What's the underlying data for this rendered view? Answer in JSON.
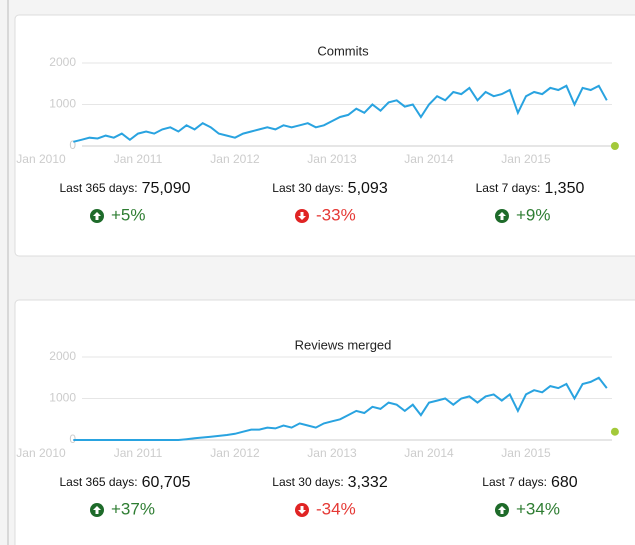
{
  "chart_data": [
    {
      "type": "line",
      "title": "Commits",
      "color": "#29a3e0",
      "ylim": [
        0,
        2000
      ],
      "yticks": [
        0,
        1000,
        2000
      ],
      "xticks": [
        {
          "value": "2010-01",
          "label": "Jan 2010"
        },
        {
          "value": "2011-01",
          "label": "Jan 2011"
        },
        {
          "value": "2012-01",
          "label": "Jan 2012"
        },
        {
          "value": "2013-01",
          "label": "Jan 2013"
        },
        {
          "value": "2014-01",
          "label": "Jan 2014"
        },
        {
          "value": "2015-01",
          "label": "Jan 2015"
        }
      ],
      "x": [
        "2010-05",
        "2010-06",
        "2010-07",
        "2010-08",
        "2010-09",
        "2010-10",
        "2010-11",
        "2010-12",
        "2011-01",
        "2011-02",
        "2011-03",
        "2011-04",
        "2011-05",
        "2011-06",
        "2011-07",
        "2011-08",
        "2011-09",
        "2011-10",
        "2011-11",
        "2011-12",
        "2012-01",
        "2012-02",
        "2012-03",
        "2012-04",
        "2012-05",
        "2012-06",
        "2012-07",
        "2012-08",
        "2012-09",
        "2012-10",
        "2012-11",
        "2012-12",
        "2013-01",
        "2013-02",
        "2013-03",
        "2013-04",
        "2013-05",
        "2013-06",
        "2013-07",
        "2013-08",
        "2013-09",
        "2013-10",
        "2013-11",
        "2013-12",
        "2014-01",
        "2014-02",
        "2014-03",
        "2014-04",
        "2014-05",
        "2014-06",
        "2014-07",
        "2014-08",
        "2014-09",
        "2014-10",
        "2014-11",
        "2014-12",
        "2015-01",
        "2015-02",
        "2015-03",
        "2015-04",
        "2015-05",
        "2015-06",
        "2015-07",
        "2015-08",
        "2015-09",
        "2015-10",
        "2015-11"
      ],
      "values": [
        100,
        150,
        200,
        180,
        250,
        200,
        300,
        150,
        300,
        350,
        300,
        400,
        450,
        350,
        500,
        400,
        550,
        450,
        300,
        250,
        200,
        300,
        350,
        400,
        450,
        400,
        500,
        450,
        500,
        550,
        450,
        500,
        600,
        700,
        750,
        900,
        800,
        1000,
        850,
        1050,
        1100,
        950,
        1000,
        700,
        1000,
        1200,
        1100,
        1300,
        1250,
        1400,
        1100,
        1300,
        1200,
        1250,
        1350,
        800,
        1200,
        1300,
        1250,
        1400,
        1350,
        1450,
        1000,
        1400,
        1350,
        1450,
        1100
      ],
      "marker": {
        "x": "2015-12",
        "value": 0,
        "color": "#a3c93a"
      }
    },
    {
      "type": "line",
      "title": "Reviews merged",
      "color": "#29a3e0",
      "ylim": [
        0,
        2000
      ],
      "yticks": [
        0,
        1000,
        2000
      ],
      "xticks": [
        {
          "value": "2010-01",
          "label": "Jan 2010"
        },
        {
          "value": "2011-01",
          "label": "Jan 2011"
        },
        {
          "value": "2012-01",
          "label": "Jan 2012"
        },
        {
          "value": "2013-01",
          "label": "Jan 2013"
        },
        {
          "value": "2014-01",
          "label": "Jan 2014"
        },
        {
          "value": "2015-01",
          "label": "Jan 2015"
        }
      ],
      "x": [
        "2010-05",
        "2010-06",
        "2010-07",
        "2010-08",
        "2010-09",
        "2010-10",
        "2010-11",
        "2010-12",
        "2011-01",
        "2011-02",
        "2011-03",
        "2011-04",
        "2011-05",
        "2011-06",
        "2011-07",
        "2011-08",
        "2011-09",
        "2011-10",
        "2011-11",
        "2011-12",
        "2012-01",
        "2012-02",
        "2012-03",
        "2012-04",
        "2012-05",
        "2012-06",
        "2012-07",
        "2012-08",
        "2012-09",
        "2012-10",
        "2012-11",
        "2012-12",
        "2013-01",
        "2013-02",
        "2013-03",
        "2013-04",
        "2013-05",
        "2013-06",
        "2013-07",
        "2013-08",
        "2013-09",
        "2013-10",
        "2013-11",
        "2013-12",
        "2014-01",
        "2014-02",
        "2014-03",
        "2014-04",
        "2014-05",
        "2014-06",
        "2014-07",
        "2014-08",
        "2014-09",
        "2014-10",
        "2014-11",
        "2014-12",
        "2015-01",
        "2015-02",
        "2015-03",
        "2015-04",
        "2015-05",
        "2015-06",
        "2015-07",
        "2015-08",
        "2015-09",
        "2015-10",
        "2015-11"
      ],
      "values": [
        0,
        0,
        0,
        0,
        0,
        0,
        0,
        0,
        0,
        0,
        0,
        0,
        0,
        0,
        20,
        40,
        60,
        80,
        100,
        120,
        150,
        200,
        250,
        250,
        300,
        280,
        350,
        300,
        400,
        350,
        300,
        400,
        450,
        500,
        600,
        700,
        650,
        800,
        750,
        900,
        850,
        700,
        850,
        600,
        900,
        950,
        1000,
        850,
        1000,
        1050,
        900,
        1050,
        1100,
        950,
        1100,
        700,
        1100,
        1200,
        1150,
        1300,
        1250,
        1350,
        1000,
        1350,
        1400,
        1500,
        1250
      ],
      "marker": {
        "x": "2015-12",
        "value": 200,
        "color": "#a3c93a"
      }
    }
  ],
  "panels": [
    {
      "stats": [
        {
          "label": "Last 365 days:",
          "value": "75,090",
          "change": "+5%",
          "direction": "up"
        },
        {
          "label": "Last 30 days:",
          "value": "5,093",
          "change": "-33%",
          "direction": "down"
        },
        {
          "label": "Last 7 days:",
          "value": "1,350",
          "change": "+9%",
          "direction": "up"
        }
      ]
    },
    {
      "stats": [
        {
          "label": "Last 365 days:",
          "value": "60,705",
          "change": "+37%",
          "direction": "up"
        },
        {
          "label": "Last 30 days:",
          "value": "3,332",
          "change": "-34%",
          "direction": "down"
        },
        {
          "label": "Last 7 days:",
          "value": "680",
          "change": "+34%",
          "direction": "up"
        }
      ]
    }
  ]
}
